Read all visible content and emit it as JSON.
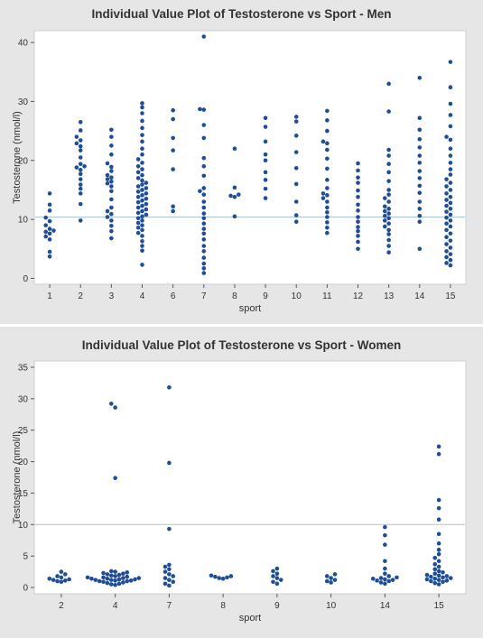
{
  "chart_data": [
    {
      "type": "scatter",
      "title": "Individual Value Plot of Testosterone vs Sport - Men",
      "xlabel": "sport",
      "ylabel": "Testosterone (nmol/l)",
      "categories": [
        "1",
        "2",
        "3",
        "4",
        "6",
        "7",
        "8",
        "9",
        "10",
        "11",
        "12",
        "13",
        "14",
        "15"
      ],
      "ylim": [
        -1,
        42
      ],
      "yticks": [
        0,
        10,
        20,
        30,
        40
      ],
      "reference_line": 10.4,
      "point_color": "#1f4e96",
      "points": {
        "1": [
          3.7,
          4.5,
          6.6,
          7.1,
          7.6,
          7.9,
          8.1,
          8.4,
          9.0,
          9.7,
          10.3,
          11.5,
          12.5,
          14.4
        ],
        "2": [
          9.8,
          12.6,
          14.4,
          15.2,
          15.9,
          16.8,
          17.7,
          18.4,
          18.8,
          19.0,
          19.4,
          20.5,
          21.7,
          22.4,
          22.9,
          23.4,
          24.0,
          25.1,
          26.5
        ],
        "3": [
          6.8,
          8.0,
          8.9,
          9.8,
          10.4,
          10.9,
          11.4,
          12.0,
          13.4,
          14.8,
          15.6,
          16.1,
          16.4,
          16.8,
          17.1,
          17.5,
          18.2,
          18.9,
          19.5,
          21.0,
          22.5,
          24.0,
          25.2
        ],
        "4": [
          2.3,
          4.7,
          5.5,
          6.3,
          7.2,
          7.7,
          8.2,
          8.6,
          9.0,
          9.4,
          9.8,
          10.2,
          10.5,
          10.8,
          11.1,
          11.4,
          11.7,
          12.0,
          12.3,
          12.6,
          12.9,
          13.2,
          13.5,
          13.8,
          14.1,
          14.4,
          14.7,
          15.0,
          15.3,
          15.6,
          15.9,
          16.2,
          16.6,
          17.0,
          17.5,
          18.0,
          18.5,
          19.0,
          19.6,
          20.2,
          21.0,
          22.0,
          23.2,
          24.3,
          25.5,
          26.7,
          28.0,
          29.0,
          29.7
        ],
        "6": [
          11.4,
          12.2,
          18.5,
          21.7,
          23.8,
          27.0,
          28.5
        ],
        "7": [
          0.9,
          1.7,
          2.5,
          3.5,
          4.6,
          5.5,
          6.6,
          7.6,
          8.4,
          9.3,
          10.2,
          11.0,
          12.0,
          13.0,
          14.2,
          14.8,
          15.3,
          17.4,
          19.0,
          20.4,
          23.8,
          26.0,
          28.6,
          28.7,
          41.0
        ],
        "8": [
          10.5,
          13.8,
          14.0,
          14.2,
          15.4,
          22.0
        ],
        "9": [
          13.6,
          15.2,
          16.7,
          18.0,
          20.0,
          21.0,
          23.2,
          25.7,
          27.2
        ],
        "10": [
          9.6,
          10.7,
          13.0,
          16.0,
          18.7,
          21.4,
          24.2,
          26.6,
          27.4
        ],
        "11": [
          7.7,
          8.6,
          9.5,
          10.4,
          11.2,
          12.0,
          13.0,
          13.6,
          14.1,
          14.4,
          15.3,
          16.7,
          18.6,
          20.3,
          21.8,
          22.9,
          23.2,
          25.0,
          26.8,
          28.4
        ],
        "12": [
          5.0,
          6.2,
          7.2,
          8.0,
          8.7,
          9.6,
          10.4,
          11.5,
          12.5,
          13.8,
          14.9,
          16.2,
          17.1,
          18.3,
          19.5
        ],
        "13": [
          4.4,
          5.5,
          6.5,
          7.5,
          8.2,
          8.8,
          9.3,
          9.8,
          10.2,
          10.6,
          11.0,
          11.4,
          11.8,
          12.2,
          13.0,
          13.6,
          14.2,
          15.0,
          16.5,
          18.0,
          19.4,
          20.8,
          21.8,
          28.3,
          33.0
        ],
        "14": [
          5.0,
          9.6,
          10.6,
          11.8,
          13.0,
          14.5,
          15.7,
          17.0,
          18.2,
          19.6,
          20.8,
          22.2,
          23.6,
          25.2,
          27.2,
          34.0
        ],
        "15": [
          2.2,
          2.6,
          3.1,
          3.6,
          4.1,
          4.6,
          5.2,
          5.8,
          6.4,
          7.0,
          7.6,
          8.2,
          8.8,
          9.3,
          9.8,
          10.3,
          10.8,
          11.3,
          11.8,
          12.3,
          12.8,
          13.3,
          13.8,
          14.4,
          15.0,
          15.6,
          16.2,
          16.8,
          17.6,
          18.5,
          19.6,
          20.8,
          22.0,
          23.5,
          24.0,
          25.8,
          27.7,
          29.6,
          32.4,
          36.7
        ]
      }
    },
    {
      "type": "scatter",
      "title": "Individual Value Plot of Testosterone vs Sport - Women",
      "xlabel": "sport",
      "ylabel": "Testosterone (nmol/l)",
      "categories": [
        "2",
        "4",
        "7",
        "8",
        "9",
        "10",
        "14",
        "15"
      ],
      "ylim": [
        -1,
        36
      ],
      "yticks": [
        0,
        5,
        10,
        15,
        20,
        25,
        30,
        35
      ],
      "reference_line": 10.0,
      "point_color": "#1f4e96",
      "points": {
        "2": [
          0.9,
          1.0,
          1.1,
          1.2,
          1.3,
          1.4,
          1.6,
          1.8,
          2.1,
          2.5
        ],
        "4": [
          0.4,
          0.5,
          0.6,
          0.7,
          0.8,
          0.9,
          1.0,
          1.0,
          1.1,
          1.1,
          1.2,
          1.2,
          1.3,
          1.3,
          1.4,
          1.4,
          1.5,
          1.5,
          1.6,
          1.6,
          1.7,
          1.8,
          1.9,
          2.0,
          2.1,
          2.2,
          2.3,
          2.4,
          2.5,
          2.6,
          17.4,
          28.6,
          29.2
        ],
        "7": [
          0.3,
          0.6,
          0.9,
          1.2,
          1.5,
          1.8,
          2.1,
          2.5,
          2.9,
          3.3,
          3.6,
          9.3,
          19.8,
          31.8
        ],
        "8": [
          1.4,
          1.5,
          1.6,
          1.7,
          1.8,
          1.9
        ],
        "9": [
          0.6,
          0.9,
          1.2,
          1.5,
          1.8,
          2.2,
          2.6,
          3.0
        ],
        "10": [
          0.8,
          1.0,
          1.2,
          1.5,
          1.8,
          2.1
        ],
        "14": [
          0.6,
          0.8,
          1.0,
          1.1,
          1.2,
          1.3,
          1.4,
          1.5,
          1.6,
          1.8,
          2.2,
          3.0,
          4.2,
          6.8,
          8.3,
          9.6
        ],
        "15": [
          0.5,
          0.7,
          0.9,
          1.0,
          1.1,
          1.2,
          1.3,
          1.4,
          1.5,
          1.6,
          1.7,
          1.8,
          1.9,
          2.0,
          2.2,
          2.4,
          2.6,
          2.9,
          3.3,
          3.7,
          4.2,
          4.7,
          5.3,
          6.0,
          7.0,
          8.5,
          10.8,
          12.6,
          13.9,
          21.2,
          22.4
        ]
      }
    }
  ]
}
